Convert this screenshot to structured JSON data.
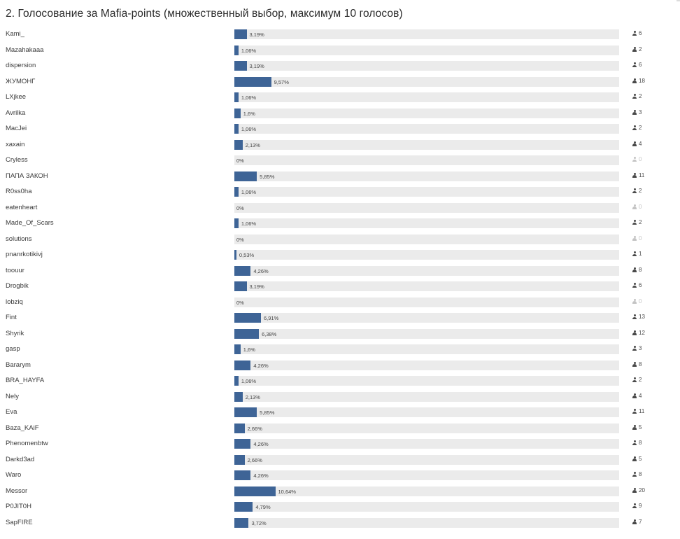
{
  "poll": {
    "title": "2. Голосование за Mafia-points (множественный выбор, максимум 10 голосов)",
    "accent_color": "#3e6496",
    "options": [
      {
        "label": "Kami_",
        "percent": "3,19%",
        "votes": "6",
        "share": 3.19
      },
      {
        "label": "Mazahakaaa",
        "percent": "1,06%",
        "votes": "2",
        "share": 1.06
      },
      {
        "label": "dispersion",
        "percent": "3,19%",
        "votes": "6",
        "share": 3.19
      },
      {
        "label": "ЖУМОНГ",
        "percent": "9,57%",
        "votes": "18",
        "share": 9.57
      },
      {
        "label": "LXjkee",
        "percent": "1,06%",
        "votes": "2",
        "share": 1.06
      },
      {
        "label": "Avrilka",
        "percent": "1,6%",
        "votes": "3",
        "share": 1.6
      },
      {
        "label": "MacJei",
        "percent": "1,06%",
        "votes": "2",
        "share": 1.06
      },
      {
        "label": "xaxain",
        "percent": "2,13%",
        "votes": "4",
        "share": 2.13
      },
      {
        "label": "Cryless",
        "percent": "0%",
        "votes": "0",
        "share": 0
      },
      {
        "label": "ПАПА ЗАКОН",
        "percent": "5,85%",
        "votes": "11",
        "share": 5.85
      },
      {
        "label": "R0ss0ha",
        "percent": "1,06%",
        "votes": "2",
        "share": 1.06
      },
      {
        "label": "eatenheart",
        "percent": "0%",
        "votes": "0",
        "share": 0
      },
      {
        "label": "Made_Of_Scars",
        "percent": "1,06%",
        "votes": "2",
        "share": 1.06
      },
      {
        "label": "solutions",
        "percent": "0%",
        "votes": "0",
        "share": 0
      },
      {
        "label": "pnanrkotikivj",
        "percent": "0,53%",
        "votes": "1",
        "share": 0.53
      },
      {
        "label": "toouur",
        "percent": "4,26%",
        "votes": "8",
        "share": 4.26
      },
      {
        "label": "Drogbik",
        "percent": "3,19%",
        "votes": "6",
        "share": 3.19
      },
      {
        "label": "lobziq",
        "percent": "0%",
        "votes": "0",
        "share": 0
      },
      {
        "label": "Fint",
        "percent": "6,91%",
        "votes": "13",
        "share": 6.91
      },
      {
        "label": "Shyrik",
        "percent": "6,38%",
        "votes": "12",
        "share": 6.38
      },
      {
        "label": "gasp",
        "percent": "1,6%",
        "votes": "3",
        "share": 1.6
      },
      {
        "label": "Bararym",
        "percent": "4,26%",
        "votes": "8",
        "share": 4.26
      },
      {
        "label": "BRA_HAYFA",
        "percent": "1,06%",
        "votes": "2",
        "share": 1.06
      },
      {
        "label": "Nely",
        "percent": "2,13%",
        "votes": "4",
        "share": 2.13
      },
      {
        "label": "Eva",
        "percent": "5,85%",
        "votes": "11",
        "share": 5.85
      },
      {
        "label": "Baza_KAiF",
        "percent": "2,66%",
        "votes": "5",
        "share": 2.66
      },
      {
        "label": "Phenomenbtw",
        "percent": "4,26%",
        "votes": "8",
        "share": 4.26
      },
      {
        "label": "Darkd3ad",
        "percent": "2,66%",
        "votes": "5",
        "share": 2.66
      },
      {
        "label": "Waro",
        "percent": "4,26%",
        "votes": "8",
        "share": 4.26
      },
      {
        "label": "Messor",
        "percent": "10,64%",
        "votes": "20",
        "share": 10.64
      },
      {
        "label": "P0JIT0H",
        "percent": "4,79%",
        "votes": "9",
        "share": 4.79
      },
      {
        "label": "SapFIRE",
        "percent": "3,72%",
        "votes": "7",
        "share": 3.72
      }
    ]
  }
}
